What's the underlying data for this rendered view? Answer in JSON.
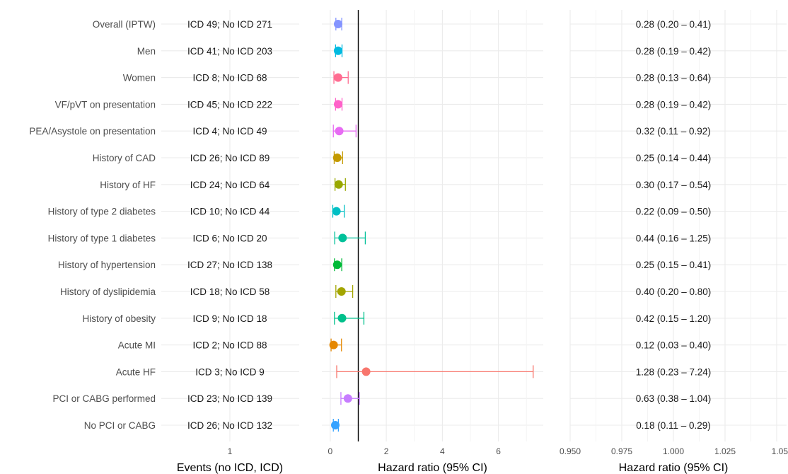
{
  "chart_data": [
    {
      "type": "table",
      "panel": "events",
      "xlabel": "Events (no ICD, ICD)",
      "x_ticks": [
        "1"
      ],
      "rows": [
        {
          "label": "Overall (IPTW)",
          "events": "ICD 49; No ICD 271"
        },
        {
          "label": "Men",
          "events": "ICD 41; No ICD 203"
        },
        {
          "label": "Women",
          "events": "ICD 8; No ICD 68"
        },
        {
          "label": "VF/pVT on presentation",
          "events": "ICD 45; No ICD 222"
        },
        {
          "label": "PEA/Asystole on presentation",
          "events": "ICD 4; No ICD 49"
        },
        {
          "label": "History of CAD",
          "events": "ICD 26; No ICD 89"
        },
        {
          "label": "History of HF",
          "events": "ICD 24; No ICD 64"
        },
        {
          "label": "History of type 2 diabetes",
          "events": "ICD 10; No ICD 44"
        },
        {
          "label": "History of type 1 diabetes",
          "events": "ICD 6; No ICD 20"
        },
        {
          "label": "History of hypertension",
          "events": "ICD 27; No ICD 138"
        },
        {
          "label": "History of dyslipidemia",
          "events": "ICD 18; No ICD 58"
        },
        {
          "label": "History of obesity",
          "events": "ICD 9; No ICD 18"
        },
        {
          "label": "Acute MI",
          "events": "ICD 2; No ICD 88"
        },
        {
          "label": "Acute HF",
          "events": "ICD 3; No ICD 9"
        },
        {
          "label": "PCI or CABG performed",
          "events": "ICD 23; No ICD 139"
        },
        {
          "label": "No PCI or CABG",
          "events": "ICD 26; No ICD 132"
        }
      ]
    },
    {
      "type": "scatter",
      "panel": "forest",
      "xlabel": "Hazard ratio (95% CI)",
      "xlim": [
        -0.3,
        7.6
      ],
      "x_ticks": [
        0,
        2,
        4,
        6
      ],
      "reference_line": 1,
      "grid": true,
      "points": [
        {
          "label": "Overall (IPTW)",
          "hr": 0.28,
          "lower": 0.2,
          "upper": 0.41,
          "color": "#8494FF"
        },
        {
          "label": "Men",
          "hr": 0.28,
          "lower": 0.19,
          "upper": 0.42,
          "color": "#00BAE0"
        },
        {
          "label": "Women",
          "hr": 0.28,
          "lower": 0.13,
          "upper": 0.64,
          "color": "#FF6C91"
        },
        {
          "label": "VF/pVT on presentation",
          "hr": 0.28,
          "lower": 0.19,
          "upper": 0.42,
          "color": "#FF61C9"
        },
        {
          "label": "PEA/Asystole on presentation",
          "hr": 0.32,
          "lower": 0.11,
          "upper": 0.92,
          "color": "#E76BF3"
        },
        {
          "label": "History of CAD",
          "hr": 0.25,
          "lower": 0.14,
          "upper": 0.44,
          "color": "#C49A00"
        },
        {
          "label": "History of HF",
          "hr": 0.3,
          "lower": 0.17,
          "upper": 0.54,
          "color": "#99A800"
        },
        {
          "label": "History of type 2 diabetes",
          "hr": 0.22,
          "lower": 0.09,
          "upper": 0.5,
          "color": "#00BFC4"
        },
        {
          "label": "History of type 1 diabetes",
          "hr": 0.44,
          "lower": 0.16,
          "upper": 1.25,
          "color": "#00C19A"
        },
        {
          "label": "History of hypertension",
          "hr": 0.25,
          "lower": 0.15,
          "upper": 0.41,
          "color": "#00BA38"
        },
        {
          "label": "History of dyslipidemia",
          "hr": 0.4,
          "lower": 0.2,
          "upper": 0.8,
          "color": "#A3A500"
        },
        {
          "label": "History of obesity",
          "hr": 0.42,
          "lower": 0.15,
          "upper": 1.2,
          "color": "#00C08B"
        },
        {
          "label": "Acute MI",
          "hr": 0.12,
          "lower": 0.03,
          "upper": 0.4,
          "color": "#E58700"
        },
        {
          "label": "Acute HF",
          "hr": 1.28,
          "lower": 0.23,
          "upper": 7.24,
          "color": "#F8766D"
        },
        {
          "label": "PCI or CABG performed",
          "hr": 0.63,
          "lower": 0.38,
          "upper": 1.04,
          "color": "#C77CFF"
        },
        {
          "label": "No PCI or CABG",
          "hr": 0.18,
          "lower": 0.11,
          "upper": 0.29,
          "color": "#35A2FF"
        }
      ]
    },
    {
      "type": "table",
      "panel": "hr-text",
      "xlabel": "Hazard ratio (95% CI)",
      "x_ticks": [
        "0.950",
        "0.975",
        "1.000",
        "1.025",
        "1.05"
      ],
      "values": [
        "0.28 (0.20 – 0.41)",
        "0.28 (0.19 – 0.42)",
        "0.28 (0.13 – 0.64)",
        "0.28 (0.19 – 0.42)",
        "0.32 (0.11 – 0.92)",
        "0.25 (0.14 – 0.44)",
        "0.30 (0.17 – 0.54)",
        "0.22 (0.09 – 0.50)",
        "0.44 (0.16 – 1.25)",
        "0.25 (0.15 – 0.41)",
        "0.40 (0.20 – 0.80)",
        "0.42 (0.15 – 1.20)",
        "0.12 (0.03 – 0.40)",
        "1.28 (0.23 – 7.24)",
        "0.63 (0.38 – 1.04)",
        "0.18 (0.11 – 0.29)"
      ]
    }
  ]
}
